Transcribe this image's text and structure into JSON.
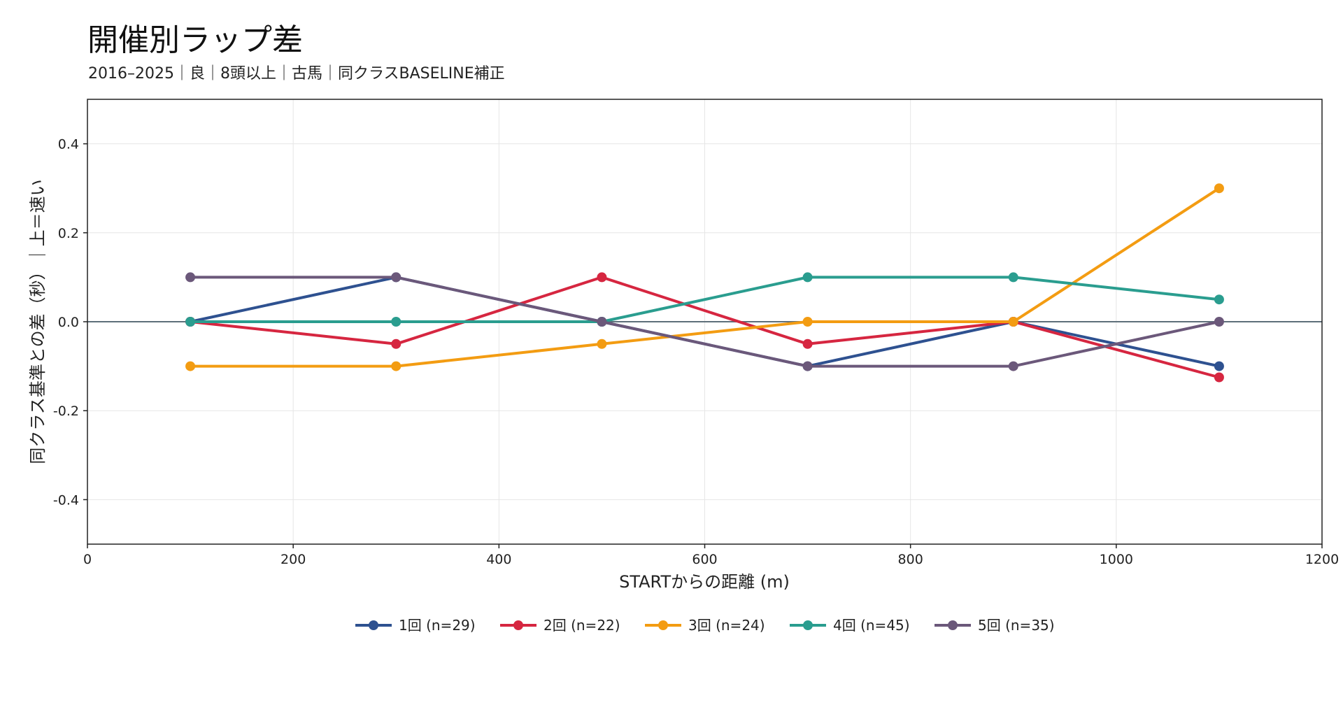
{
  "chart_data": {
    "type": "line",
    "title": "開催別ラップ差",
    "subtitle": "2016–2025｜良｜8頭以上｜古馬｜同クラスBASELINE補正",
    "xlabel": "STARTからの距離 (m)",
    "ylabel": "同クラス基準との差（秒）｜上＝速い",
    "xlim": [
      0,
      1200
    ],
    "ylim": [
      -0.5,
      0.5
    ],
    "xticks": [
      0,
      200,
      400,
      600,
      800,
      1000,
      1200
    ],
    "yticks": [
      -0.4,
      -0.2,
      0.0,
      0.2,
      0.4
    ],
    "xtick_labels": [
      "0",
      "200",
      "400",
      "600",
      "800",
      "1000",
      "1200"
    ],
    "ytick_labels": [
      "-0.4",
      "-0.2",
      "0.0",
      "0.2",
      "0.4"
    ],
    "grid": true,
    "reference_line": 0.0,
    "legend_position": "bottom-center",
    "x": [
      100,
      300,
      500,
      700,
      900,
      1100
    ],
    "series": [
      {
        "name": "1回 (n=29)",
        "color": "#2e5190",
        "values": [
          0.0,
          0.1,
          0.0,
          -0.1,
          0.0,
          -0.1
        ]
      },
      {
        "name": "2回 (n=22)",
        "color": "#d62640",
        "values": [
          0.0,
          -0.05,
          0.1,
          -0.05,
          0.0,
          -0.125
        ]
      },
      {
        "name": "3回 (n=24)",
        "color": "#f39c12",
        "values": [
          -0.1,
          -0.1,
          -0.05,
          0.0,
          0.0,
          0.3
        ]
      },
      {
        "name": "4回 (n=45)",
        "color": "#2a9d8f",
        "values": [
          0.0,
          0.0,
          0.0,
          0.1,
          0.1,
          0.05
        ]
      },
      {
        "name": "5回 (n=35)",
        "color": "#6b587a",
        "values": [
          0.1,
          0.1,
          0.0,
          -0.1,
          -0.1,
          0.0
        ]
      }
    ]
  }
}
